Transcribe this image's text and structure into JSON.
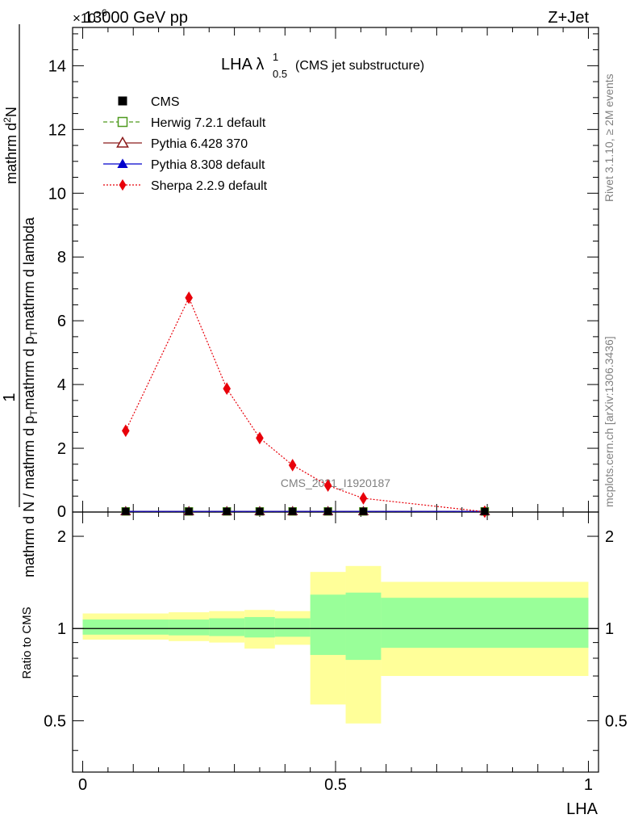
{
  "header": {
    "energy_label": "13000 GeV pp",
    "process_label": "Z+Jet",
    "exponent_label": "×10",
    "exponent_power": "−6"
  },
  "title": {
    "main": "LHA λ",
    "sup": "1",
    "sub": "0.5",
    "suffix": "(CMS jet substructure)"
  },
  "side_text": {
    "rivet": "Rivet 3.1.10, ≥ 2M events",
    "mcplots": "mcplots.cern.ch [arXiv:1306.3436]"
  },
  "watermark": "CMS_2021_I1920187",
  "axes": {
    "main_ylabel": "1 / (mathrm d N / mathrm d p_T mathrm d p_T mathrm d lambda) · mathrm d^2N",
    "main_ylabel_numerator": "1",
    "main_ylabel_denominator": "mathrm d N / mathrm d p",
    "main_ylabel_line2": "mathrm d²N",
    "main_ylabel_line3": "mathrm d p",
    "main_ylabel_line3b": "mathrm d p",
    "main_ylabel_line3c": "mathrm d lambda",
    "ratio_ylabel": "Ratio to CMS",
    "xlabel": "LHA",
    "main_yticks": [
      "2",
      "4",
      "6",
      "8",
      "10",
      "12",
      "14"
    ],
    "main_ytick_values": [
      2,
      4,
      6,
      8,
      10,
      12,
      14
    ],
    "ratio_yticks": [
      "0.5",
      "1",
      "2"
    ],
    "ratio_ytick_values": [
      0.5,
      1,
      2
    ],
    "xticks": [
      "0",
      "0.5",
      "1"
    ],
    "xtick_values": [
      0,
      0.5,
      1
    ]
  },
  "legend": [
    {
      "label": "CMS",
      "color": "#000000",
      "marker": "square-filled",
      "line": "none"
    },
    {
      "label": "Herwig 7.2.1 default",
      "color": "#4f9a1f",
      "marker": "square-open",
      "line": "dashed"
    },
    {
      "label": "Pythia 6.428 370",
      "color": "#8b1a1a",
      "marker": "triangle-open",
      "line": "solid"
    },
    {
      "label": "Pythia 8.308 default",
      "color": "#0000cc",
      "marker": "triangle-filled",
      "line": "solid"
    },
    {
      "label": "Sherpa 2.2.9 default",
      "color": "#e8000a",
      "marker": "diamond-filled",
      "line": "dotted"
    }
  ],
  "chart_data": {
    "type": "line",
    "x_range": [
      -0.02,
      1.02
    ],
    "main_ylim": [
      0,
      15.2
    ],
    "ratio_ylim": [
      0.34,
      2.4
    ],
    "ratio_scale": "log",
    "y_scale_factor": "1e-6",
    "bin_edges": [
      0,
      0.17,
      0.25,
      0.32,
      0.38,
      0.45,
      0.52,
      0.59,
      1.0
    ],
    "x_centers": [
      0.085,
      0.21,
      0.285,
      0.35,
      0.415,
      0.485,
      0.555,
      0.795
    ],
    "series": [
      {
        "name": "CMS",
        "values": [
          0.02,
          0.02,
          0.02,
          0.02,
          0.02,
          0.02,
          0.02,
          0.02
        ]
      },
      {
        "name": "Herwig 7.2.1 default",
        "values": [
          0.02,
          0.02,
          0.02,
          0.02,
          0.02,
          0.02,
          0.02,
          0.02
        ]
      },
      {
        "name": "Pythia 6.428 370",
        "values": [
          0.02,
          0.02,
          0.02,
          0.02,
          0.02,
          0.02,
          0.02,
          0.02
        ]
      },
      {
        "name": "Pythia 8.308 default",
        "values": [
          0.02,
          0.02,
          0.02,
          0.02,
          0.02,
          0.02,
          0.02,
          0.02
        ]
      },
      {
        "name": "Sherpa 2.2.9 default",
        "values": [
          2.55,
          6.72,
          3.87,
          2.32,
          1.47,
          0.83,
          0.43,
          0.01
        ]
      }
    ],
    "ratio_bands": {
      "stat_low": [
        0.955,
        0.95,
        0.945,
        0.935,
        0.94,
        0.82,
        0.79,
        0.865
      ],
      "stat_high": [
        1.07,
        1.07,
        1.08,
        1.09,
        1.08,
        1.29,
        1.31,
        1.26
      ],
      "total_low": [
        0.92,
        0.91,
        0.9,
        0.86,
        0.885,
        0.565,
        0.49,
        0.7
      ],
      "total_high": [
        1.12,
        1.13,
        1.14,
        1.15,
        1.14,
        1.53,
        1.6,
        1.42
      ]
    }
  }
}
